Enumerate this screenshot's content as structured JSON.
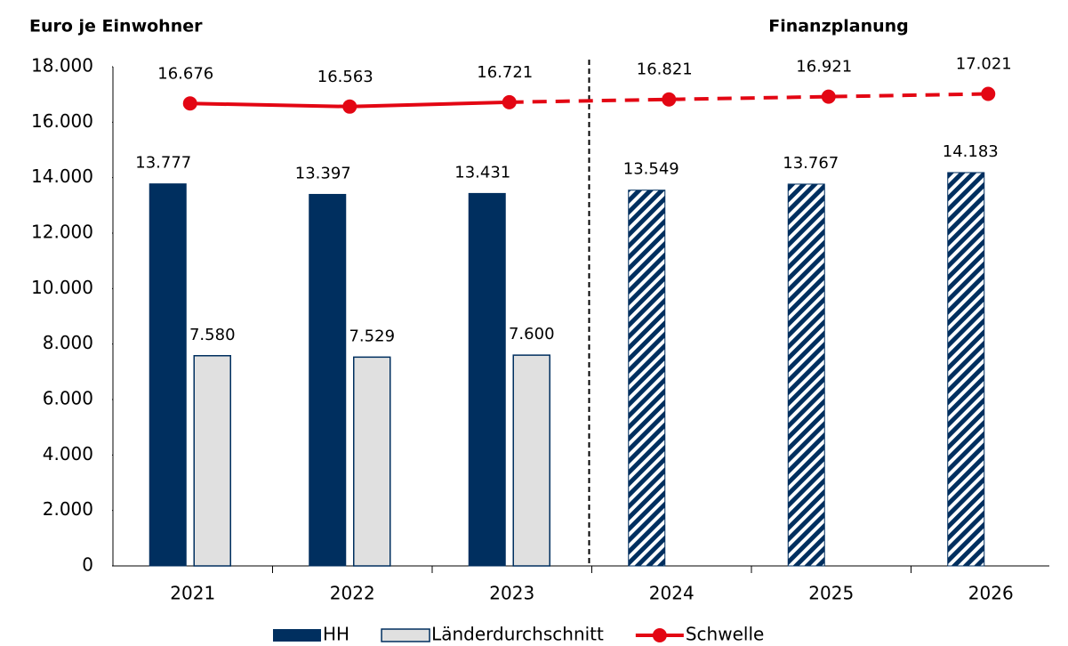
{
  "chart_data": {
    "type": "bar",
    "y_label": "Euro je Einwohner",
    "annotation": "Finanzplanung",
    "categories": [
      "2021",
      "2022",
      "2023",
      "2024",
      "2025",
      "2026"
    ],
    "ylim": [
      0,
      18000
    ],
    "yticks": [
      0,
      {
        "value": 2000,
        "label": "2.000"
      },
      {
        "value": 4000,
        "label": "4.000"
      },
      {
        "value": 6000,
        "label": "6.000"
      },
      {
        "value": 8000,
        "label": "8.000"
      },
      {
        "value": 10000,
        "label": "10.000"
      },
      {
        "value": 12000,
        "label": "12.000"
      },
      {
        "value": 14000,
        "label": "14.000"
      },
      {
        "value": 16000,
        "label": "16.000"
      },
      {
        "value": 18000,
        "label": "18.000"
      }
    ],
    "grid": false,
    "legend": "bottom",
    "series": [
      {
        "name": "HH",
        "type": "bar",
        "color": "#002f5f",
        "values": [
          13777,
          13397,
          13431,
          13549,
          13767,
          14183
        ],
        "value_labels": [
          "13.777",
          "13.397",
          "13.431",
          "13.549",
          "13.767",
          "14.183"
        ],
        "hatched": [
          false,
          false,
          false,
          true,
          true,
          true
        ]
      },
      {
        "name": "Länderdurchschnitt",
        "type": "bar",
        "color": "#e0e0e0",
        "values": [
          7580,
          7529,
          7600,
          null,
          null,
          null
        ],
        "value_labels": [
          "7.580",
          "7.529",
          "7.600",
          null,
          null,
          null
        ]
      },
      {
        "name": "Schwelle",
        "type": "line",
        "color": "#e30613",
        "values": [
          16676,
          16563,
          16721,
          16821,
          16921,
          17021
        ],
        "value_labels": [
          "16.676",
          "16.563",
          "16.721",
          "16.821",
          "16.921",
          "17.021"
        ],
        "dashed_segments": [
          false,
          false,
          true,
          true,
          true
        ]
      }
    ]
  }
}
